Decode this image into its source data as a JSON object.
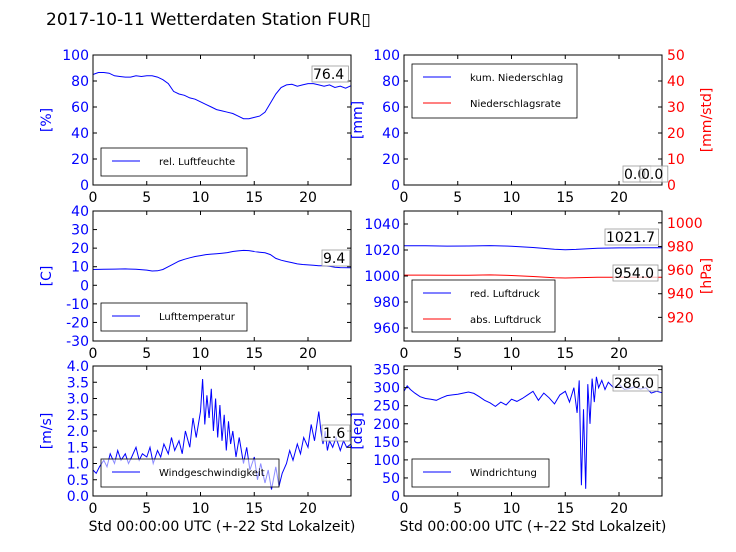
{
  "title": "2017-10-11 Wetterdaten Station FUR▯",
  "xlabel": "Std 00:00:00 UTC (+-22 Std Lokalzeit)",
  "colors": {
    "primary": "#0000ff",
    "secondary": "#ff0000",
    "axis": "#000000"
  },
  "chart_data": [
    {
      "type": "line",
      "id": "humidity",
      "ylabel": "[%]",
      "xlim": [
        0,
        24
      ],
      "ylim": [
        0,
        100
      ],
      "xticks": [
        0,
        5,
        10,
        15,
        20
      ],
      "yticks": [
        0,
        20,
        40,
        60,
        80,
        100
      ],
      "legend": "bottom-left",
      "current_value": "76.4",
      "series": [
        {
          "name": "rel. Luftfeuchte",
          "color": "#0000ff",
          "x": [
            0,
            0.5,
            1,
            1.5,
            2,
            2.5,
            3,
            3.5,
            4,
            4.5,
            5,
            5.5,
            6,
            6.5,
            7,
            7.5,
            8,
            8.5,
            9,
            9.5,
            10,
            10.5,
            11,
            11.5,
            12,
            12.5,
            13,
            13.5,
            14,
            14.5,
            15,
            15.5,
            16,
            16.5,
            17,
            17.5,
            18,
            18.5,
            19,
            19.5,
            20,
            20.5,
            21,
            21.5,
            22,
            22.5,
            23,
            23.5,
            24
          ],
          "y": [
            85,
            86.5,
            86.5,
            86,
            84,
            83.5,
            83,
            83,
            84,
            83.5,
            84,
            84,
            83,
            81,
            78,
            72,
            70,
            69,
            67,
            66,
            64,
            62,
            60,
            58,
            57,
            56,
            55,
            53,
            51,
            51,
            52,
            53,
            56,
            63,
            70,
            75,
            77,
            77.5,
            76,
            77,
            78,
            78,
            77,
            76,
            77,
            75,
            76,
            74.5,
            76.4
          ]
        }
      ]
    },
    {
      "type": "line",
      "id": "precipitation",
      "ylabel": "[mm]",
      "ylabel2": "[mm/std]",
      "xlim": [
        0,
        24
      ],
      "ylim": [
        0,
        100
      ],
      "ylim2": [
        0,
        50
      ],
      "xticks": [
        0,
        5,
        10,
        15,
        20
      ],
      "yticks": [
        0,
        20,
        40,
        60,
        80,
        100
      ],
      "yticks2": [
        0,
        10,
        20,
        30,
        40,
        50
      ],
      "legend": "top-left",
      "current_value": "0.0",
      "current_value2": "0.0",
      "series": [
        {
          "name": "kum. Niederschlag",
          "color": "#0000ff",
          "axis": "left",
          "x": [
            0,
            24
          ],
          "y": [
            0,
            0
          ]
        },
        {
          "name": "Niederschlagsrate",
          "color": "#ff0000",
          "axis": "right",
          "x": [
            0,
            24
          ],
          "y": [
            0,
            0
          ]
        }
      ]
    },
    {
      "type": "line",
      "id": "temperature",
      "ylabel": "[C]",
      "xlim": [
        0,
        24
      ],
      "ylim": [
        -30,
        40
      ],
      "xticks": [
        0,
        5,
        10,
        15,
        20
      ],
      "yticks": [
        -30,
        -20,
        -10,
        0,
        10,
        20,
        30,
        40
      ],
      "legend": "bottom-left",
      "current_value": "9.4",
      "series": [
        {
          "name": "Lufttemperatur",
          "color": "#0000ff",
          "x": [
            0,
            1,
            2,
            3,
            4,
            5,
            5.5,
            6,
            6.5,
            7,
            7.5,
            8,
            8.5,
            9,
            9.5,
            10,
            10.5,
            11,
            11.5,
            12,
            12.5,
            13,
            13.5,
            14,
            14.5,
            15,
            15.5,
            16,
            16.5,
            17,
            17.5,
            18,
            18.5,
            19,
            19.5,
            20,
            20.5,
            21,
            21.5,
            22,
            22.5,
            23,
            24
          ],
          "y": [
            8.5,
            8.6,
            8.7,
            8.8,
            8.6,
            8.2,
            7.7,
            7.8,
            8.5,
            10,
            11.5,
            13,
            14,
            14.8,
            15.5,
            16,
            16.5,
            16.8,
            17,
            17.3,
            17.6,
            18.2,
            18.5,
            18.8,
            18.7,
            18.2,
            17.8,
            17.5,
            16.5,
            14.5,
            13.5,
            12.8,
            12.2,
            11.5,
            11.2,
            11,
            10.8,
            10.5,
            10.5,
            10.2,
            9.7,
            9.5,
            9.4
          ]
        }
      ]
    },
    {
      "type": "line",
      "id": "pressure",
      "ylabel2": "[hPa]",
      "xlim": [
        0,
        24
      ],
      "ylim": [
        950,
        1050
      ],
      "ylim2": [
        900,
        1010
      ],
      "xticks": [
        0,
        5,
        10,
        15,
        20
      ],
      "yticks": [
        960,
        980,
        1000,
        1020,
        1040
      ],
      "yticks2": [
        920,
        940,
        960,
        980,
        1000
      ],
      "legend": "bottom-left",
      "current_value": "1021.7",
      "current_value2": "954.0",
      "series": [
        {
          "name": "red. Luftdruck",
          "color": "#0000ff",
          "axis": "left",
          "x": [
            0,
            2,
            4,
            6,
            8,
            10,
            12,
            14,
            15,
            16,
            18,
            20,
            22,
            24
          ],
          "y": [
            1023.3,
            1023.2,
            1023.0,
            1023.1,
            1023.4,
            1022.9,
            1021.9,
            1020.6,
            1020.2,
            1020.5,
            1021.3,
            1021.6,
            1021.7,
            1021.7
          ]
        },
        {
          "name": "abs. Luftdruck",
          "color": "#ff0000",
          "axis": "right",
          "x": [
            0,
            2,
            4,
            6,
            8,
            10,
            12,
            14,
            15,
            16,
            18,
            20,
            22,
            24
          ],
          "y": [
            955.8,
            955.8,
            955.6,
            955.7,
            955.9,
            955.4,
            954.6,
            953.6,
            953.3,
            953.6,
            954.0,
            954.0,
            954.0,
            954.0
          ]
        }
      ]
    },
    {
      "type": "line",
      "id": "windspeed",
      "ylabel": "[m/s]",
      "xlim": [
        0,
        24
      ],
      "ylim": [
        0,
        4
      ],
      "xticks": [
        0,
        5,
        10,
        15,
        20
      ],
      "yticks": [
        0,
        0.5,
        1,
        1.5,
        2,
        2.5,
        3,
        3.5,
        4
      ],
      "ytick_labels": [
        "0.0",
        "0.5",
        "1.0",
        "1.5",
        "2.0",
        "2.5",
        "3.0",
        "3.5",
        "4.0"
      ],
      "legend": "bottom-left",
      "current_value": "1.6",
      "series": [
        {
          "name": "Windgeschwindigkeit",
          "color": "#0000ff",
          "x": [
            0,
            0.3,
            0.6,
            1,
            1.3,
            1.6,
            2,
            2.3,
            2.6,
            3,
            3.3,
            3.6,
            4,
            4.3,
            4.6,
            5,
            5.3,
            5.6,
            6,
            6.3,
            6.6,
            7,
            7.3,
            7.6,
            8,
            8.3,
            8.6,
            9,
            9.3,
            9.6,
            10,
            10.2,
            10.4,
            10.6,
            10.8,
            11,
            11.2,
            11.4,
            11.6,
            11.8,
            12,
            12.2,
            12.4,
            12.6,
            12.8,
            13,
            13.3,
            13.6,
            14,
            14.3,
            14.6,
            15,
            15.3,
            15.6,
            16,
            16.3,
            16.6,
            17,
            17.3,
            17.6,
            18,
            18.3,
            18.6,
            19,
            19.3,
            19.6,
            20,
            20.3,
            20.6,
            21,
            21.2,
            21.4,
            21.6,
            21.8,
            22,
            22.3,
            22.6,
            23,
            23.3,
            23.6,
            24
          ],
          "y": [
            0.8,
            0.7,
            0.9,
            1.1,
            0.9,
            1.3,
            1.0,
            1.4,
            1.1,
            1.3,
            1.0,
            1.2,
            1.5,
            1.1,
            1.3,
            1.2,
            1.5,
            1.0,
            1.4,
            1.2,
            1.6,
            1.3,
            1.8,
            1.4,
            1.7,
            1.3,
            2.0,
            1.5,
            2.4,
            1.8,
            2.6,
            3.6,
            2.2,
            3.1,
            2.4,
            3.3,
            2.0,
            3.0,
            1.8,
            2.8,
            1.7,
            2.5,
            1.4,
            2.3,
            1.6,
            2.0,
            1.2,
            1.8,
            1.0,
            1.5,
            0.8,
            1.2,
            0.5,
            1.0,
            0.4,
            0.8,
            0.2,
            0.9,
            0.3,
            0.7,
            1.0,
            1.4,
            1.1,
            1.6,
            1.3,
            1.8,
            1.5,
            2.2,
            1.7,
            2.6,
            2.0,
            1.6,
            2.0,
            1.4,
            1.7,
            1.5,
            1.8,
            1.4,
            1.7,
            1.5,
            1.6
          ]
        }
      ]
    },
    {
      "type": "line",
      "id": "winddirection",
      "ylabel": "[deg]",
      "xlim": [
        0,
        24
      ],
      "ylim": [
        0,
        360
      ],
      "xticks": [
        0,
        5,
        10,
        15,
        20
      ],
      "yticks": [
        0,
        50,
        100,
        150,
        200,
        250,
        300,
        350
      ],
      "legend": "bottom-left",
      "current_value": "286.0",
      "series": [
        {
          "name": "Windrichtung",
          "color": "#0000ff",
          "x": [
            0,
            0.3,
            0.6,
            1,
            1.5,
            2,
            2.5,
            3,
            3.5,
            4,
            4.5,
            5,
            5.5,
            6,
            6.5,
            7,
            7.5,
            8,
            8.5,
            9,
            9.5,
            10,
            10.5,
            11,
            11.5,
            12,
            12.5,
            13,
            13.5,
            14,
            14.5,
            15,
            15.4,
            15.8,
            16.1,
            16.3,
            16.5,
            16.7,
            16.9,
            17.1,
            17.3,
            17.5,
            17.7,
            17.9,
            18.1,
            18.4,
            18.7,
            19,
            19.5,
            20,
            20.5,
            21,
            21.5,
            22,
            22.5,
            23,
            23.5,
            24
          ],
          "y": [
            290,
            305,
            295,
            285,
            275,
            270,
            268,
            265,
            272,
            278,
            280,
            282,
            285,
            288,
            284,
            275,
            265,
            258,
            248,
            260,
            252,
            268,
            262,
            270,
            280,
            290,
            265,
            285,
            272,
            255,
            280,
            290,
            260,
            300,
            230,
            320,
            30,
            240,
            20,
            310,
            200,
            325,
            260,
            330,
            300,
            320,
            295,
            315,
            300,
            310,
            295,
            298,
            302,
            296,
            300,
            285,
            290,
            286
          ]
        }
      ]
    }
  ]
}
